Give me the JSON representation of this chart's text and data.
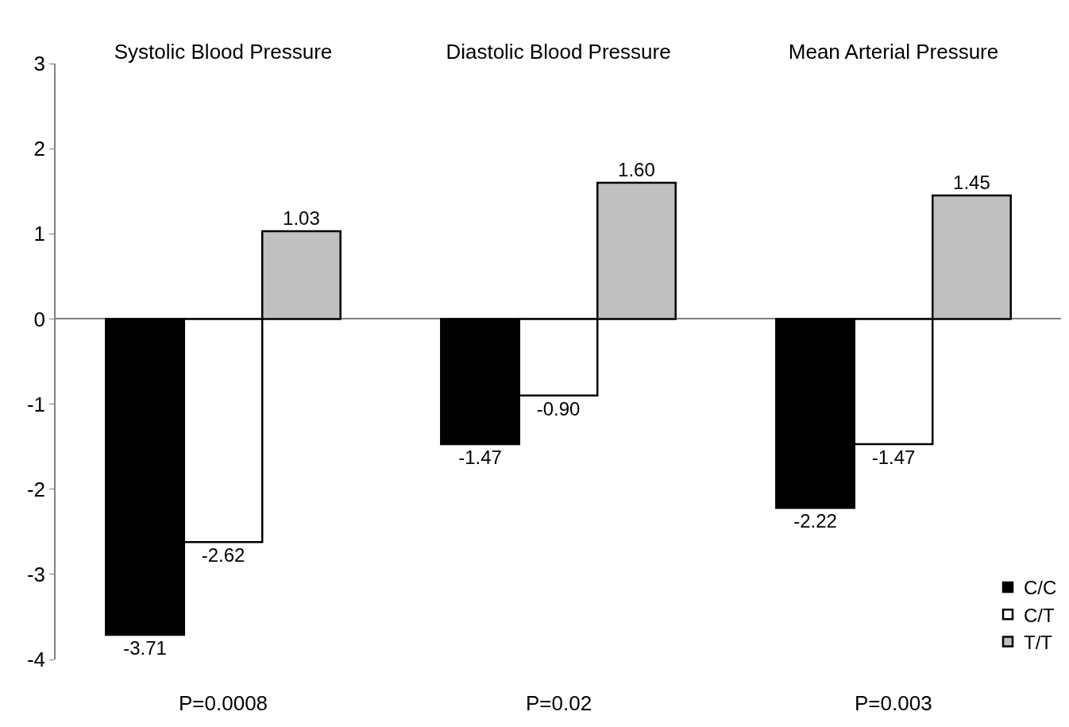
{
  "chart_data": {
    "type": "bar",
    "categories": [
      "Systolic Blood Pressure",
      "Diastolic Blood Pressure",
      "Mean Arterial Pressure"
    ],
    "series": [
      {
        "name": "C/C",
        "color": "#000000",
        "values": [
          -3.71,
          -1.47,
          -2.22
        ],
        "value_labels": [
          "-3.71",
          "-1.47",
          "-2.22"
        ]
      },
      {
        "name": "C/T",
        "color": "#ffffff",
        "values": [
          -2.62,
          -0.9,
          -1.47
        ],
        "value_labels": [
          "-2.62",
          "-0.90",
          "-1.47"
        ]
      },
      {
        "name": "T/T",
        "color": "#c0c0c0",
        "values": [
          1.03,
          1.6,
          1.45
        ],
        "value_labels": [
          "1.03",
          "1.60",
          "1.45"
        ]
      }
    ],
    "ylim": [
      -4,
      3
    ],
    "yticks": [
      -4,
      -3,
      -2,
      -1,
      0,
      1,
      2,
      3
    ],
    "legend": "bottom right",
    "annotations": [
      "P=0.0008",
      "P=0.02",
      "P=0.003"
    ]
  }
}
